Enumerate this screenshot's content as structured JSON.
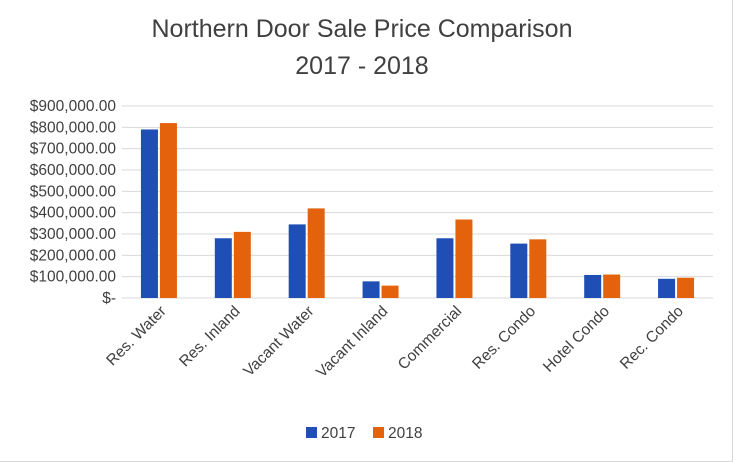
{
  "chart_data": {
    "type": "bar",
    "title": "Northern Door Sale Price Comparison",
    "subtitle": "2017 - 2018",
    "categories": [
      "Res. Water",
      "Res. Inland",
      "Vacant Water",
      "Vacant Inland",
      "Commercial",
      "Res. Condo",
      "Hotel Condo",
      "Rec. Condo"
    ],
    "series": [
      {
        "name": "2017",
        "color": "#1f4eb4",
        "values": [
          790000,
          280000,
          345000,
          78000,
          280000,
          255000,
          108000,
          90000
        ]
      },
      {
        "name": "2018",
        "color": "#e3620b",
        "values": [
          820000,
          310000,
          420000,
          58000,
          368000,
          275000,
          110000,
          95000
        ]
      }
    ],
    "ylim": [
      0,
      900000
    ],
    "y_ticks": [
      "$-",
      "$100,000.00",
      "$200,000.00",
      "$300,000.00",
      "$400,000.00",
      "$500,000.00",
      "$600,000.00",
      "$700,000.00",
      "$800,000.00",
      "$900,000.00"
    ],
    "grid": true,
    "legend": "bottom",
    "gridline_color": "#d9d9d9"
  }
}
